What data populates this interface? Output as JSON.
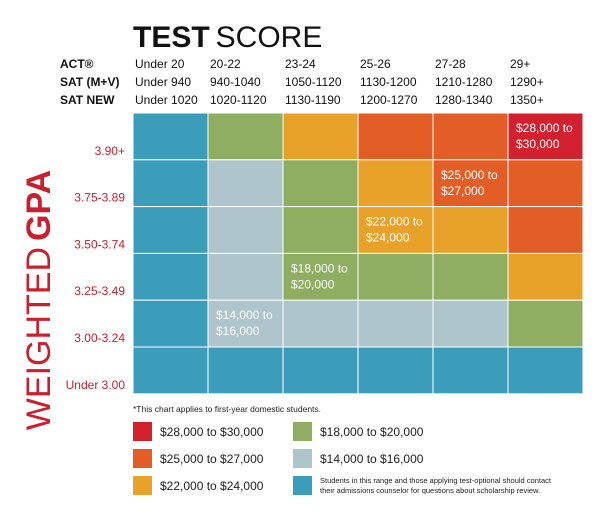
{
  "header": {
    "title_bold": "TEST",
    "title_rest": "SCORE",
    "rows": [
      {
        "label": "ACT®",
        "values": [
          "Under 20",
          "20-22",
          "23-24",
          "25-26",
          "27-28",
          "29+"
        ]
      },
      {
        "label": "SAT (M+V)",
        "values": [
          "Under 940",
          "940-1040",
          "1050-1120",
          "1130-1200",
          "1210-1280",
          "1290+"
        ]
      },
      {
        "label": "SAT NEW",
        "values": [
          "Under 1020",
          "1020-1120",
          "1130-1190",
          "1200-1270",
          "1280-1340",
          "1350+"
        ]
      }
    ]
  },
  "axis_title": {
    "light": "WEIGHTED",
    "bold": "GPA"
  },
  "grid": {
    "rows": [
      {
        "label": "3.90+",
        "cells": [
          {
            "color": "#3c9dbb"
          },
          {
            "color": "#8fae62"
          },
          {
            "color": "#e8a22a"
          },
          {
            "color": "#e35d26"
          },
          {
            "color": "#e35d26"
          },
          {
            "color": "#d2202f",
            "label": [
              "$28,000 to",
              "$30,000"
            ]
          }
        ]
      },
      {
        "label": "3.75-3.89",
        "cells": [
          {
            "color": "#3c9dbb"
          },
          {
            "color": "#aec5cc"
          },
          {
            "color": "#8fae62"
          },
          {
            "color": "#e8a22a"
          },
          {
            "color": "#e35d26",
            "label": [
              "$25,000 to",
              "$27,000"
            ]
          },
          {
            "color": "#e35d26"
          }
        ]
      },
      {
        "label": "3.50-3.74",
        "cells": [
          {
            "color": "#3c9dbb"
          },
          {
            "color": "#aec5cc"
          },
          {
            "color": "#8fae62"
          },
          {
            "color": "#e8a22a",
            "label": [
              "$22,000 to",
              "$24,000"
            ]
          },
          {
            "color": "#e8a22a"
          },
          {
            "color": "#e35d26"
          }
        ]
      },
      {
        "label": "3.25-3.49",
        "cells": [
          {
            "color": "#3c9dbb"
          },
          {
            "color": "#aec5cc"
          },
          {
            "color": "#8fae62",
            "label": [
              "$18,000 to",
              "$20,000"
            ]
          },
          {
            "color": "#8fae62"
          },
          {
            "color": "#8fae62"
          },
          {
            "color": "#e8a22a"
          }
        ]
      },
      {
        "label": "3.00-3.24",
        "cells": [
          {
            "color": "#3c9dbb"
          },
          {
            "color": "#aec5cc",
            "label": [
              "$14,000 to",
              "$16,000"
            ]
          },
          {
            "color": "#aec5cc"
          },
          {
            "color": "#aec5cc"
          },
          {
            "color": "#aec5cc"
          },
          {
            "color": "#8fae62"
          }
        ]
      },
      {
        "label": "Under 3.00",
        "cells": [
          {
            "color": "#3c9dbb"
          },
          {
            "color": "#3c9dbb"
          },
          {
            "color": "#3c9dbb"
          },
          {
            "color": "#3c9dbb"
          },
          {
            "color": "#3c9dbb"
          },
          {
            "color": "#3c9dbb"
          }
        ]
      }
    ]
  },
  "footnote": "*This chart applies to first-year domestic students.",
  "legend": [
    {
      "color": "#d2202f",
      "text": [
        "$28,000 to $30,000"
      ]
    },
    {
      "color": "#e35d26",
      "text": [
        "$25,000 to $27,000"
      ]
    },
    {
      "color": "#e8a22a",
      "text": [
        "$22,000 to $24,000"
      ]
    },
    {
      "color": "#8fae62",
      "text": [
        "$18,000 to $20,000"
      ]
    },
    {
      "color": "#aec5cc",
      "text": [
        "$14,000 to $16,000"
      ]
    },
    {
      "color": "#3c9dbb",
      "text": [
        "Students in this range and those applying test-optional should contact",
        "their admissions counselor for questions about scholarship review."
      ]
    }
  ]
}
